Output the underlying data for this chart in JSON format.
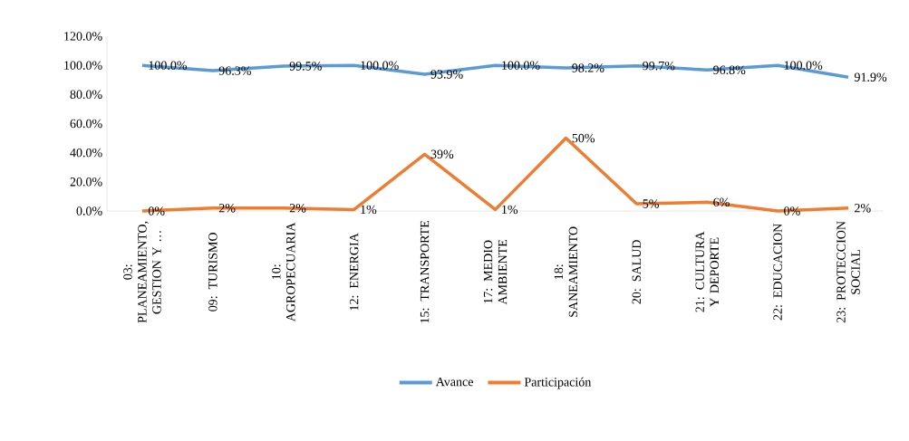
{
  "chart_data": {
    "type": "line",
    "categories": [
      "03: PLANEAMIENTO, GESTION Y …",
      "09: TURISMO",
      "10: AGROPECUARIA",
      "12: ENERGIA",
      "15: TRANSPORTE",
      "17: MEDIO AMBIENTE",
      "18: SANEAMIENTO",
      "20: SALUD",
      "21: CULTURA Y DEPORTE",
      "22: EDUCACION",
      "23: PROTECCION SOCIAL"
    ],
    "series": [
      {
        "name": "Avance",
        "color": "#5b9bd5",
        "values": [
          100.0,
          96.3,
          99.5,
          100.0,
          93.9,
          100.0,
          98.2,
          99.7,
          96.8,
          100.0,
          91.9
        ],
        "value_labels": [
          "100.0%",
          "96.3%",
          "99.5%",
          "100.0%",
          "93.9%",
          "100.0%",
          "98.2%",
          "99.7%",
          "96.8%",
          "100.0%",
          "91.9%"
        ]
      },
      {
        "name": "Participación",
        "color": "#ed7d31",
        "values": [
          0,
          2,
          2,
          1,
          39,
          1,
          50,
          5,
          6,
          0,
          2
        ],
        "value_labels": [
          "0%",
          "2%",
          "2%",
          "1%",
          "39%",
          "1%",
          "50%",
          "5%",
          "6%",
          "0%",
          "2%"
        ]
      }
    ],
    "ylim": [
      0,
      120
    ],
    "yticks": [
      {
        "value": 0,
        "label": "0.0%"
      },
      {
        "value": 20,
        "label": "20.0%"
      },
      {
        "value": 40,
        "label": "40.0%"
      },
      {
        "value": 60,
        "label": "60.0%"
      },
      {
        "value": 80,
        "label": "80.0%"
      },
      {
        "value": 100,
        "label": "100.0%"
      },
      {
        "value": 120,
        "label": "120.0%"
      }
    ],
    "legend": "bottom"
  }
}
